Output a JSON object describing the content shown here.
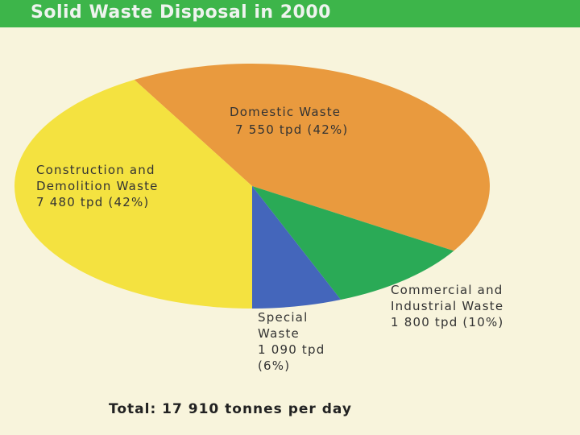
{
  "chart_data": {
    "type": "pie",
    "title": "Solid Waste Disposal in 2000",
    "categories": [
      "Domestic Waste",
      "Commercial and Industrial Waste",
      "Special Waste",
      "Construction and Demolition Waste"
    ],
    "values": [
      7550,
      1800,
      1090,
      7480
    ],
    "value_labels": [
      "7 550 tpd (42%)",
      "1 800 tpd (10%)",
      "1 090 tpd (6%)",
      "7 480 tpd (42%)"
    ],
    "colors": [
      "#e99a3e",
      "#2aaa56",
      "#4466bb",
      "#f4e240"
    ],
    "annotation": "Total: 17 910 tonnes per day"
  }
}
